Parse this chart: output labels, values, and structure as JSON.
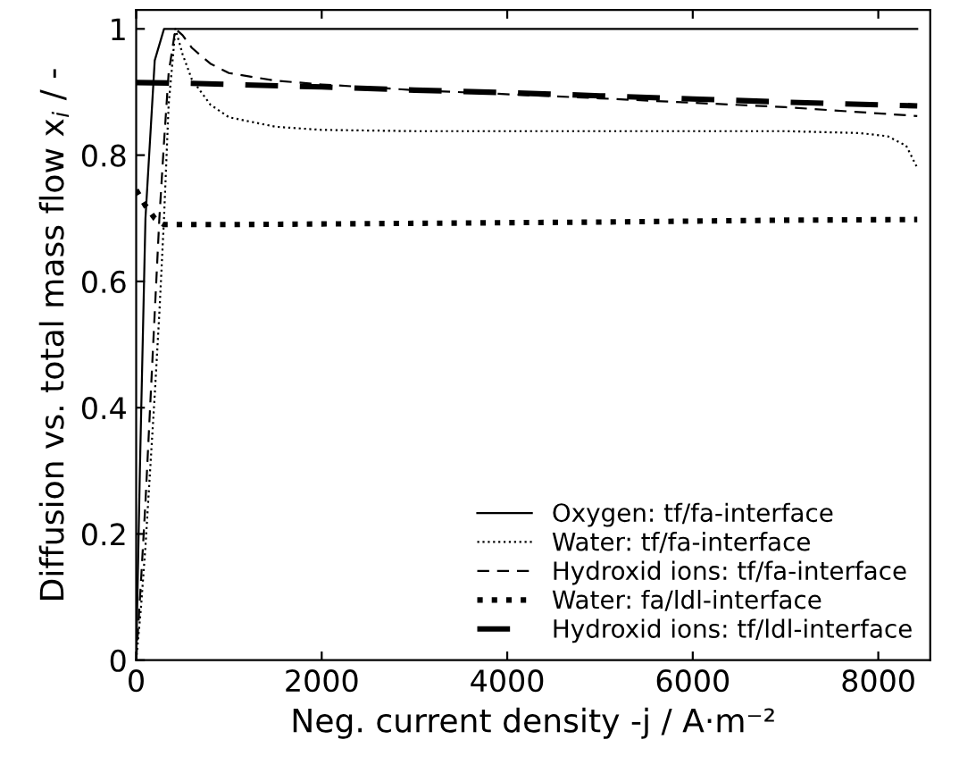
{
  "chart_data": {
    "type": "line",
    "xlabel": "Neg. current density -j / A·m⁻²",
    "ylabel": "Diffusion vs. total mass flow x$_{i}$ / -",
    "xlim": [
      0,
      8560
    ],
    "ylim": [
      0,
      1.03
    ],
    "xticks": [
      0,
      2000,
      4000,
      6000,
      8000
    ],
    "yticks": [
      0,
      0.2,
      0.4,
      0.6,
      0.8,
      1
    ],
    "legend": "bottom right",
    "grid": false,
    "series": [
      {
        "name": "Oxygen: tf/fa-interface",
        "color": "#000000",
        "line_style": "solid",
        "x": [
          0,
          40,
          100,
          200,
          300,
          400,
          1000,
          3000,
          5000,
          7000,
          8420
        ],
        "values": [
          0,
          0.3,
          0.7,
          0.95,
          1,
          1,
          1,
          1,
          1,
          1,
          1
        ]
      },
      {
        "name": "Water: tf/fa-interface",
        "color": "#000000",
        "line_style": "dotted",
        "x": [
          0,
          50,
          100,
          150,
          200,
          250,
          300,
          350,
          423,
          500,
          600,
          800,
          1000,
          1500,
          2000,
          3000,
          5000,
          7000,
          7800,
          8100,
          8300,
          8420
        ],
        "values": [
          0,
          0.08,
          0.18,
          0.3,
          0.42,
          0.55,
          0.7,
          0.88,
          1,
          0.96,
          0.92,
          0.88,
          0.86,
          0.845,
          0.84,
          0.838,
          0.838,
          0.838,
          0.835,
          0.83,
          0.815,
          0.78
        ]
      },
      {
        "name": "Hydroxid ions: tf/fa-interface",
        "color": "#000000",
        "line_style": "dashed",
        "x": [
          0,
          50,
          100,
          150,
          200,
          250,
          300,
          350,
          423,
          500,
          600,
          800,
          1000,
          1500,
          2000,
          3000,
          5000,
          7000,
          8420
        ],
        "values": [
          0,
          0.12,
          0.25,
          0.4,
          0.55,
          0.7,
          0.82,
          0.93,
          1,
          0.99,
          0.97,
          0.945,
          0.93,
          0.918,
          0.912,
          0.903,
          0.89,
          0.876,
          0.862
        ]
      },
      {
        "name": "Water: fa/ldl-interface",
        "color": "#000000",
        "line_style": "dotted",
        "x": [
          0,
          100,
          200,
          300,
          1000,
          3000,
          5000,
          7000,
          8420
        ],
        "values": [
          0.745,
          0.72,
          0.7,
          0.69,
          0.69,
          0.692,
          0.694,
          0.697,
          0.698
        ]
      },
      {
        "name": "Hydroxid ions: tf/ldl-interface",
        "color": "#000000",
        "line_style": "dashed",
        "x": [
          0,
          500,
          1000,
          2000,
          3000,
          4000,
          5000,
          6000,
          7000,
          8420
        ],
        "values": [
          0.915,
          0.914,
          0.912,
          0.908,
          0.903,
          0.899,
          0.894,
          0.889,
          0.884,
          0.878
        ]
      }
    ]
  }
}
